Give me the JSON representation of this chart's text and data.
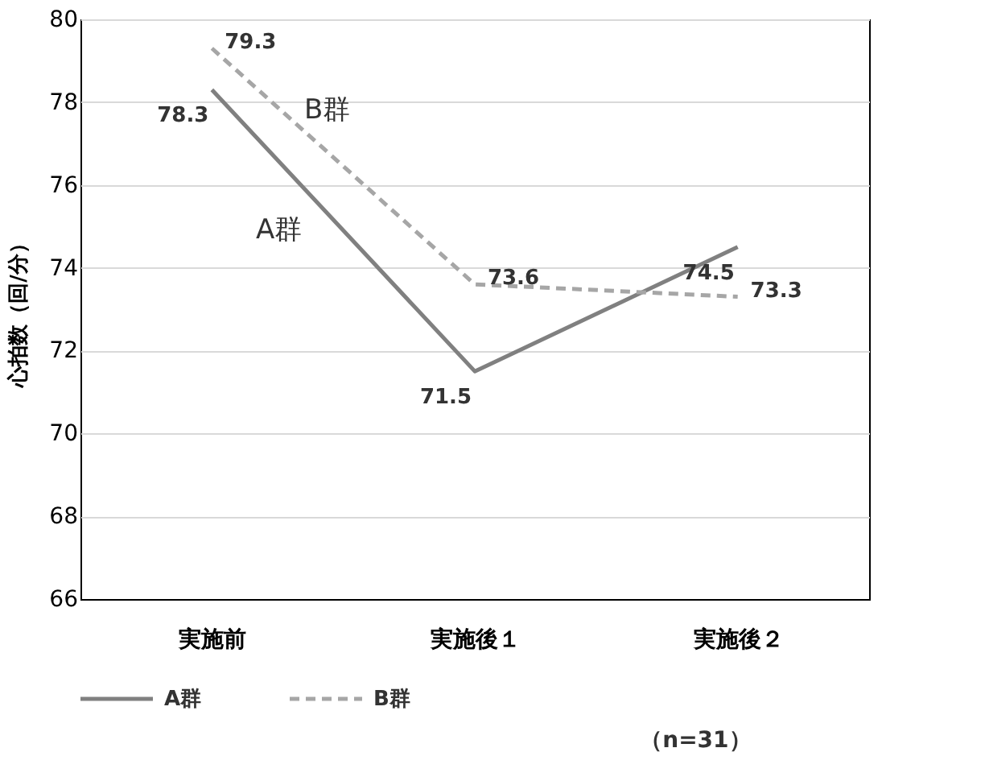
{
  "chart_data": {
    "type": "line",
    "ylabel": "心拍数（回/分）",
    "categories": [
      "実施前",
      "実施後１",
      "実施後２"
    ],
    "series": [
      {
        "name": "A群",
        "color": "#808080",
        "line_style": "solid",
        "values": [
          78.3,
          71.5,
          74.5
        ]
      },
      {
        "name": "B群",
        "color": "#a6a6a6",
        "line_style": "dashed",
        "values": [
          79.3,
          73.6,
          73.3
        ]
      }
    ],
    "ylim": [
      66,
      80
    ],
    "yticks": [
      66,
      68,
      70,
      72,
      74,
      76,
      78,
      80
    ],
    "grid": "y",
    "legend": "bottom",
    "data_labels": true,
    "marker": "none",
    "annotations": [
      "（n=31）"
    ]
  }
}
